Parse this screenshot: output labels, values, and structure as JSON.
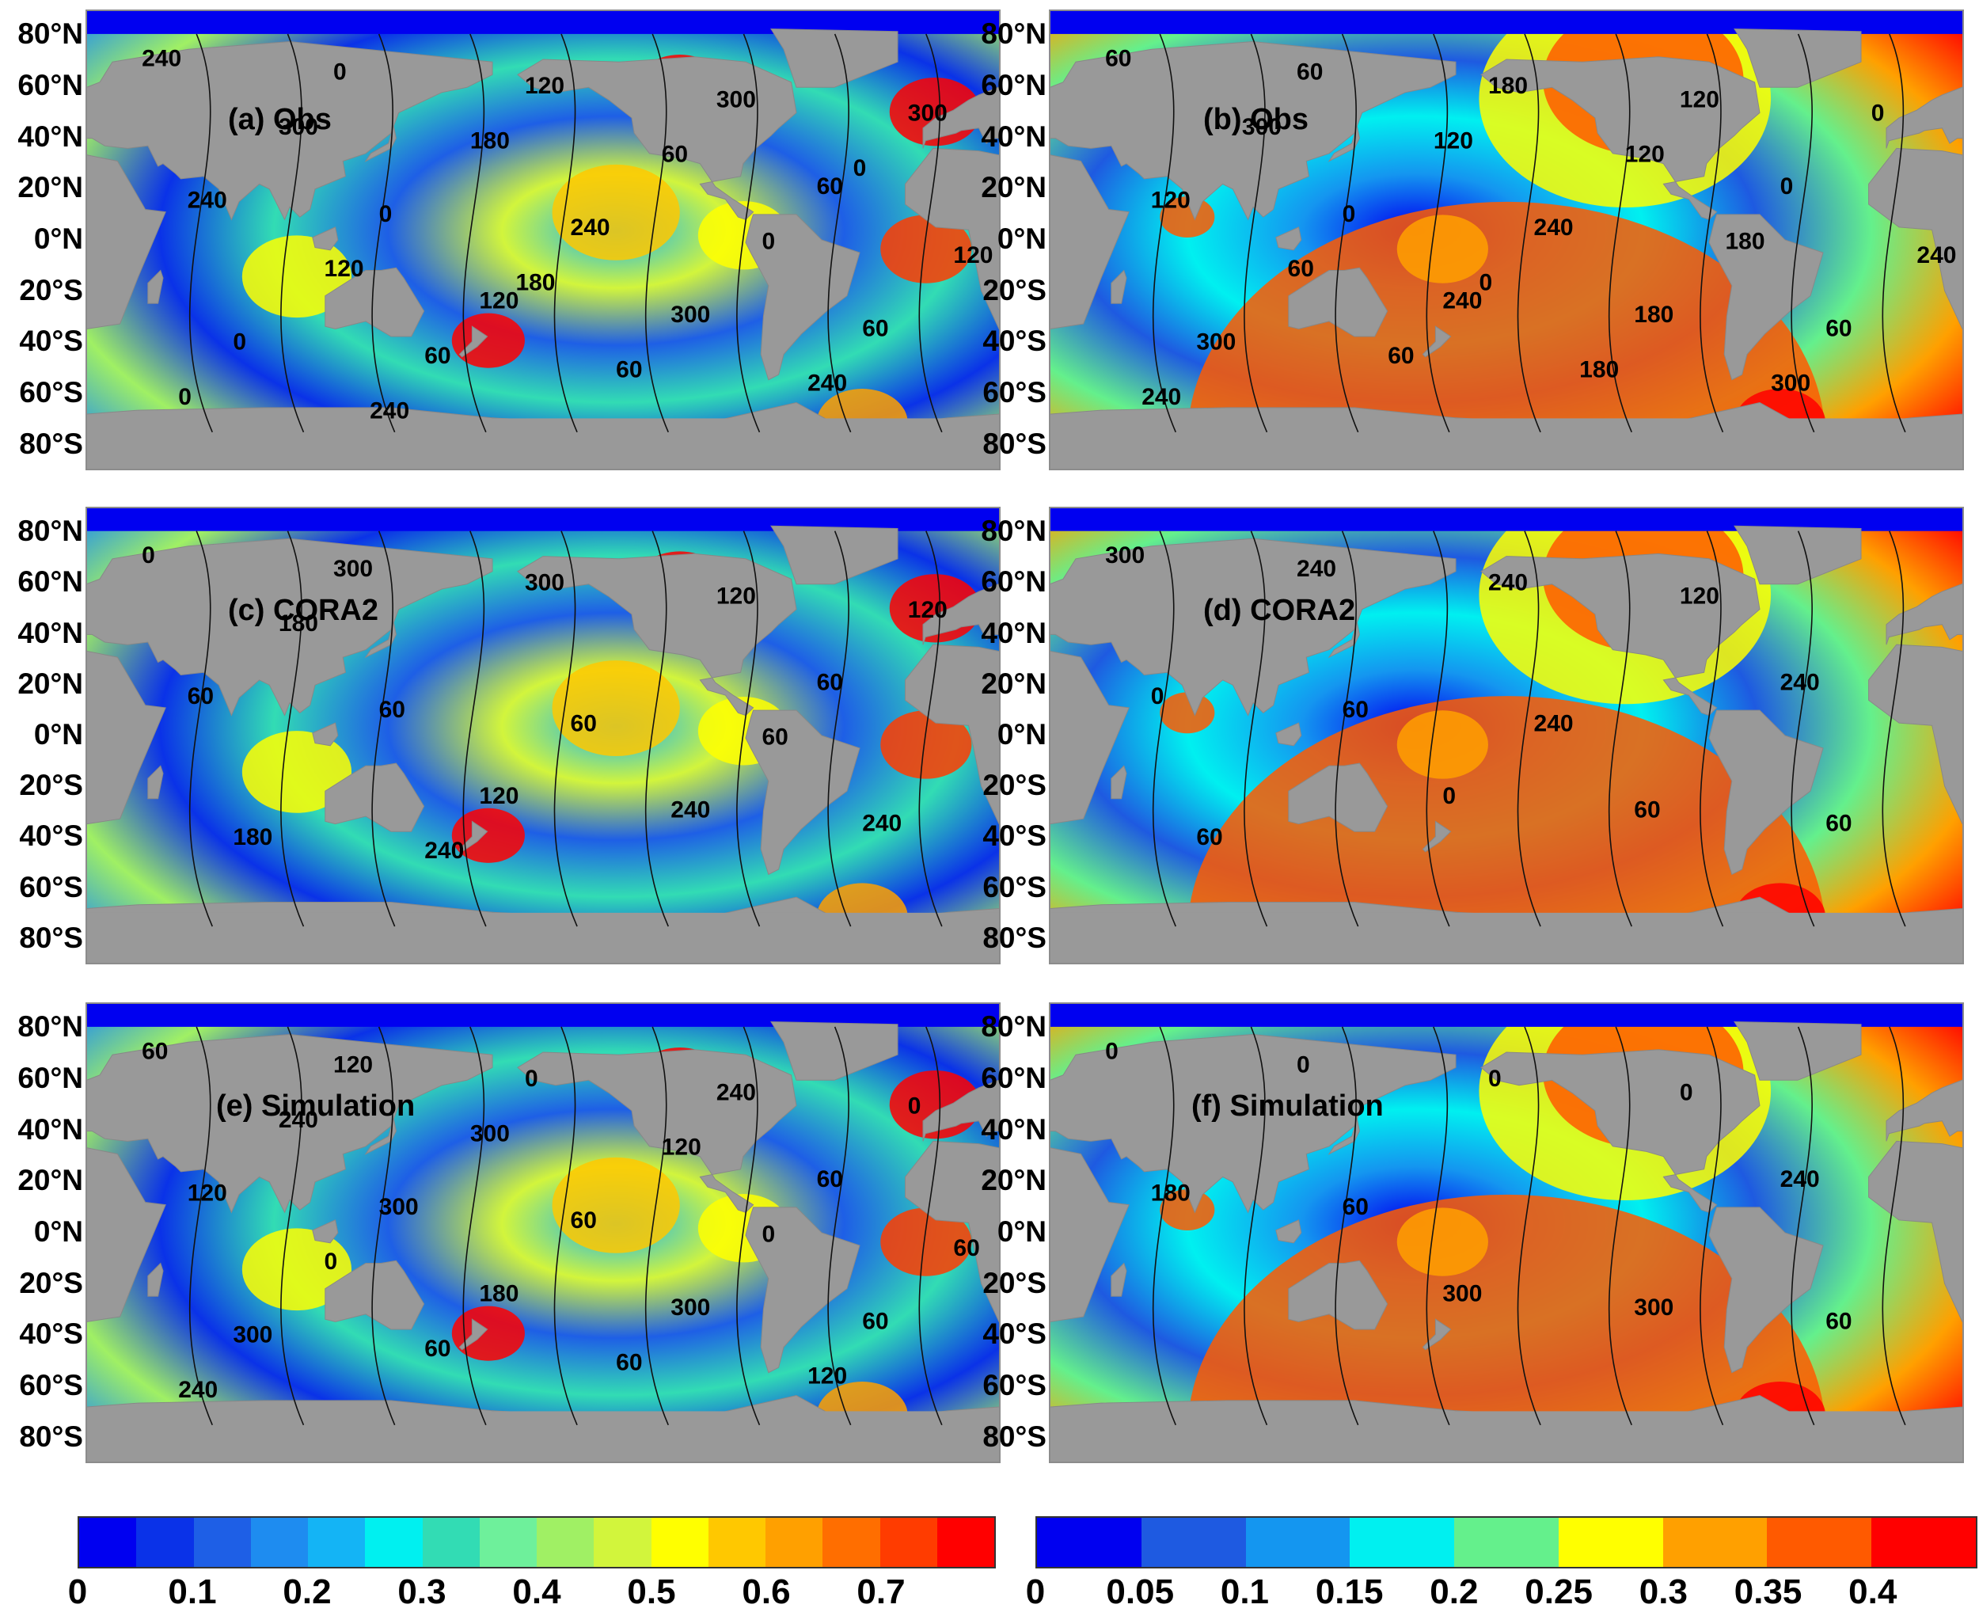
{
  "latitude_labels": [
    "80°N",
    "60°N",
    "40°N",
    "20°N",
    "0°N",
    "20°S",
    "40°S",
    "60°S",
    "80°S"
  ],
  "panels": [
    {
      "title": "(a) Obs",
      "contours": [
        "240",
        "120",
        "60",
        "0",
        "300",
        "240",
        "120",
        "60",
        "0",
        "300",
        "0",
        "240",
        "300",
        "60",
        "0",
        "300",
        "60",
        "120",
        "180",
        "240",
        "120",
        "60",
        "0",
        "180",
        "0",
        "240"
      ]
    },
    {
      "title": "(b) Obs",
      "contours": [
        "60",
        "240",
        "0",
        "60",
        "180",
        "120",
        "180",
        "60",
        "0",
        "120",
        "300",
        "240",
        "0",
        "60",
        "180",
        "300",
        "180",
        "240",
        "120",
        "300",
        "60",
        "120",
        "240",
        "0"
      ]
    },
    {
      "title": "(c) CORA2",
      "contours": [
        "0",
        "120",
        "60",
        "300",
        "240",
        "60",
        "300",
        "240",
        "60",
        "120",
        "180",
        "60",
        "120",
        "240",
        "60",
        "180"
      ]
    },
    {
      "title": "(d) CORA2",
      "contours": [
        "300",
        "0",
        "240",
        "240",
        "60",
        "0",
        "240",
        "60",
        "60",
        "120",
        "60",
        "240"
      ]
    },
    {
      "title": "(e) Simulation",
      "contours": [
        "60",
        "180",
        "60",
        "120",
        "300",
        "120",
        "0",
        "60",
        "300",
        "240",
        "300",
        "60",
        "0",
        "60",
        "0",
        "240",
        "60",
        "60",
        "300",
        "120",
        "0",
        "120",
        "240"
      ]
    },
    {
      "title": "(f) Simulation",
      "contours": [
        "0",
        "300",
        "240",
        "0",
        "300",
        "180",
        "0",
        "60",
        "60",
        "0"
      ]
    }
  ],
  "colorbars": [
    {
      "colors": [
        "#0000f0",
        "#0a32e8",
        "#1e5fe6",
        "#1e8cf0",
        "#14b4f5",
        "#00f0f0",
        "#32dcb4",
        "#6ef09b",
        "#a0f064",
        "#d2f53c",
        "#ffff00",
        "#ffc800",
        "#ffa000",
        "#ff6e00",
        "#ff3c00",
        "#ff0000"
      ],
      "ticks": [
        "0",
        "0.1",
        "0.2",
        "0.3",
        "0.4",
        "0.5",
        "0.6",
        "0.7"
      ]
    },
    {
      "colors": [
        "#0000f0",
        "#1e5ae1",
        "#1496f0",
        "#00f0f0",
        "#64f08c",
        "#ffff00",
        "#ffa000",
        "#ff5a00",
        "#ff0000"
      ],
      "ticks": [
        "0",
        "0.05",
        "0.1",
        "0.15",
        "0.2",
        "0.25",
        "0.3",
        "0.35",
        "0.4"
      ]
    }
  ]
}
